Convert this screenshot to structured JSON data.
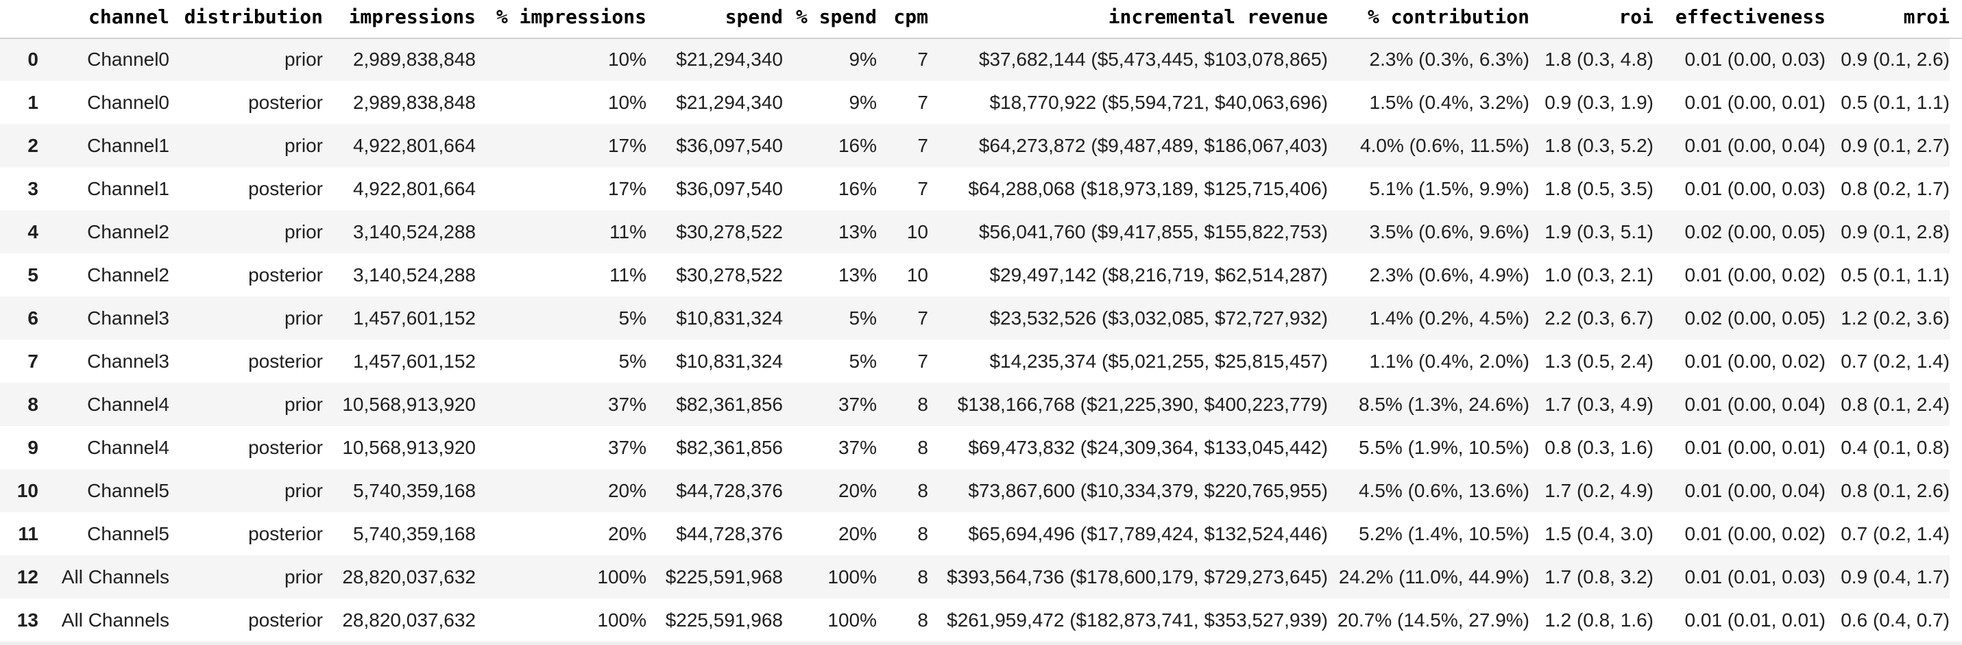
{
  "colors": {
    "bg": "#ffffff",
    "stripe": "#f5f5f5",
    "divider": "#d2d2d2",
    "text": "#1f1f1f",
    "header-text": "#000000",
    "cutoff": "#efefef"
  },
  "chart_data": {
    "type": "table",
    "columns": [
      "",
      "channel",
      "distribution",
      "impressions",
      "% impressions",
      "spend",
      "% spend",
      "cpm",
      "incremental revenue",
      "% contribution",
      "roi",
      "effectiveness",
      "mroi"
    ],
    "column_keys": [
      "row-index",
      "channel",
      "distribution",
      "impressions",
      "pct-impressions",
      "spend",
      "pct-spend",
      "cpm",
      "incremental-revenue",
      "pct-contribution",
      "roi",
      "effectiveness",
      "mroi"
    ],
    "rows": [
      [
        "0",
        "Channel0",
        "prior",
        "2,989,838,848",
        "10%",
        "$21,294,340",
        "9%",
        "7",
        "$37,682,144 ($5,473,445, $103,078,865)",
        "2.3% (0.3%, 6.3%)",
        "1.8 (0.3, 4.8)",
        "0.01 (0.00, 0.03)",
        "0.9 (0.1, 2.6)"
      ],
      [
        "1",
        "Channel0",
        "posterior",
        "2,989,838,848",
        "10%",
        "$21,294,340",
        "9%",
        "7",
        "$18,770,922 ($5,594,721, $40,063,696)",
        "1.5% (0.4%, 3.2%)",
        "0.9 (0.3, 1.9)",
        "0.01 (0.00, 0.01)",
        "0.5 (0.1, 1.1)"
      ],
      [
        "2",
        "Channel1",
        "prior",
        "4,922,801,664",
        "17%",
        "$36,097,540",
        "16%",
        "7",
        "$64,273,872 ($9,487,489, $186,067,403)",
        "4.0% (0.6%, 11.5%)",
        "1.8 (0.3, 5.2)",
        "0.01 (0.00, 0.04)",
        "0.9 (0.1, 2.7)"
      ],
      [
        "3",
        "Channel1",
        "posterior",
        "4,922,801,664",
        "17%",
        "$36,097,540",
        "16%",
        "7",
        "$64,288,068 ($18,973,189, $125,715,406)",
        "5.1% (1.5%, 9.9%)",
        "1.8 (0.5, 3.5)",
        "0.01 (0.00, 0.03)",
        "0.8 (0.2, 1.7)"
      ],
      [
        "4",
        "Channel2",
        "prior",
        "3,140,524,288",
        "11%",
        "$30,278,522",
        "13%",
        "10",
        "$56,041,760 ($9,417,855, $155,822,753)",
        "3.5% (0.6%, 9.6%)",
        "1.9 (0.3, 5.1)",
        "0.02 (0.00, 0.05)",
        "0.9 (0.1, 2.8)"
      ],
      [
        "5",
        "Channel2",
        "posterior",
        "3,140,524,288",
        "11%",
        "$30,278,522",
        "13%",
        "10",
        "$29,497,142 ($8,216,719, $62,514,287)",
        "2.3% (0.6%, 4.9%)",
        "1.0 (0.3, 2.1)",
        "0.01 (0.00, 0.02)",
        "0.5 (0.1, 1.1)"
      ],
      [
        "6",
        "Channel3",
        "prior",
        "1,457,601,152",
        "5%",
        "$10,831,324",
        "5%",
        "7",
        "$23,532,526 ($3,032,085, $72,727,932)",
        "1.4% (0.2%, 4.5%)",
        "2.2 (0.3, 6.7)",
        "0.02 (0.00, 0.05)",
        "1.2 (0.2, 3.6)"
      ],
      [
        "7",
        "Channel3",
        "posterior",
        "1,457,601,152",
        "5%",
        "$10,831,324",
        "5%",
        "7",
        "$14,235,374 ($5,021,255, $25,815,457)",
        "1.1% (0.4%, 2.0%)",
        "1.3 (0.5, 2.4)",
        "0.01 (0.00, 0.02)",
        "0.7 (0.2, 1.4)"
      ],
      [
        "8",
        "Channel4",
        "prior",
        "10,568,913,920",
        "37%",
        "$82,361,856",
        "37%",
        "8",
        "$138,166,768 ($21,225,390, $400,223,779)",
        "8.5% (1.3%, 24.6%)",
        "1.7 (0.3, 4.9)",
        "0.01 (0.00, 0.04)",
        "0.8 (0.1, 2.4)"
      ],
      [
        "9",
        "Channel4",
        "posterior",
        "10,568,913,920",
        "37%",
        "$82,361,856",
        "37%",
        "8",
        "$69,473,832 ($24,309,364, $133,045,442)",
        "5.5% (1.9%, 10.5%)",
        "0.8 (0.3, 1.6)",
        "0.01 (0.00, 0.01)",
        "0.4 (0.1, 0.8)"
      ],
      [
        "10",
        "Channel5",
        "prior",
        "5,740,359,168",
        "20%",
        "$44,728,376",
        "20%",
        "8",
        "$73,867,600 ($10,334,379, $220,765,955)",
        "4.5% (0.6%, 13.6%)",
        "1.7 (0.2, 4.9)",
        "0.01 (0.00, 0.04)",
        "0.8 (0.1, 2.6)"
      ],
      [
        "11",
        "Channel5",
        "posterior",
        "5,740,359,168",
        "20%",
        "$44,728,376",
        "20%",
        "8",
        "$65,694,496 ($17,789,424, $132,524,446)",
        "5.2% (1.4%, 10.5%)",
        "1.5 (0.4, 3.0)",
        "0.01 (0.00, 0.02)",
        "0.7 (0.2, 1.4)"
      ],
      [
        "12",
        "All Channels",
        "prior",
        "28,820,037,632",
        "100%",
        "$225,591,968",
        "100%",
        "8",
        "$393,564,736 ($178,600,179, $729,273,645)",
        "24.2% (11.0%, 44.9%)",
        "1.7 (0.8, 3.2)",
        "0.01 (0.01, 0.03)",
        "0.9 (0.4, 1.7)"
      ],
      [
        "13",
        "All Channels",
        "posterior",
        "28,820,037,632",
        "100%",
        "$225,591,968",
        "100%",
        "8",
        "$261,959,472 ($182,873,741, $353,527,939)",
        "20.7% (14.5%, 27.9%)",
        "1.2 (0.8, 1.6)",
        "0.01 (0.01, 0.01)",
        "0.6 (0.4, 0.7)"
      ]
    ]
  }
}
